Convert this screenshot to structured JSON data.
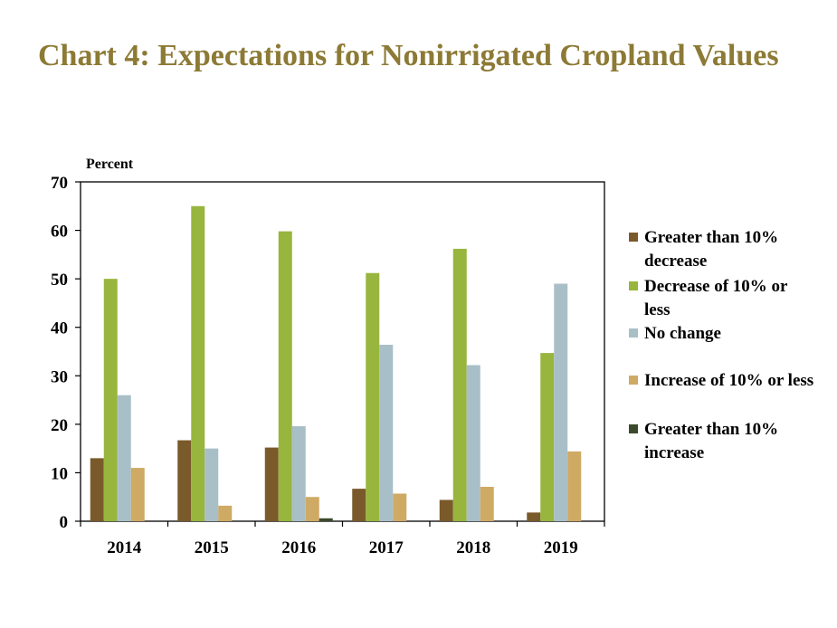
{
  "title": "Chart 4: Expectations for Nonirrigated Cropland Values",
  "colors": {
    "greater_decrease": "#7a5a2a",
    "decrease": "#98b53d",
    "no_change": "#a9bfc7",
    "increase": "#cfaa64",
    "greater_increase": "#3b4a2c"
  },
  "chart_data": {
    "type": "bar",
    "ylabel": "Percent",
    "xlabel": "",
    "ylim": [
      0,
      70
    ],
    "yticks": [
      0,
      10,
      20,
      30,
      40,
      50,
      60,
      70
    ],
    "grid": false,
    "legend_position": "right",
    "categories": [
      "2014",
      "2015",
      "2016",
      "2017",
      "2018",
      "2019"
    ],
    "series": [
      {
        "name": "Greater than 10% decrease",
        "color_key": "greater_decrease",
        "values": [
          13,
          16.7,
          15.2,
          6.7,
          4.4,
          1.8
        ]
      },
      {
        "name": "Decrease of 10% or less",
        "color_key": "decrease",
        "values": [
          50,
          65,
          59.8,
          51.2,
          56.2,
          34.7
        ]
      },
      {
        "name": "No change",
        "color_key": "no_change",
        "values": [
          26,
          15,
          19.6,
          36.4,
          32.2,
          49
        ]
      },
      {
        "name": "Increase of 10% or less",
        "color_key": "increase",
        "values": [
          11,
          3.2,
          5,
          5.7,
          7.1,
          14.4
        ]
      },
      {
        "name": "Greater than 10% increase",
        "color_key": "greater_increase",
        "values": [
          0,
          0,
          0.6,
          0,
          0,
          0
        ]
      }
    ]
  }
}
